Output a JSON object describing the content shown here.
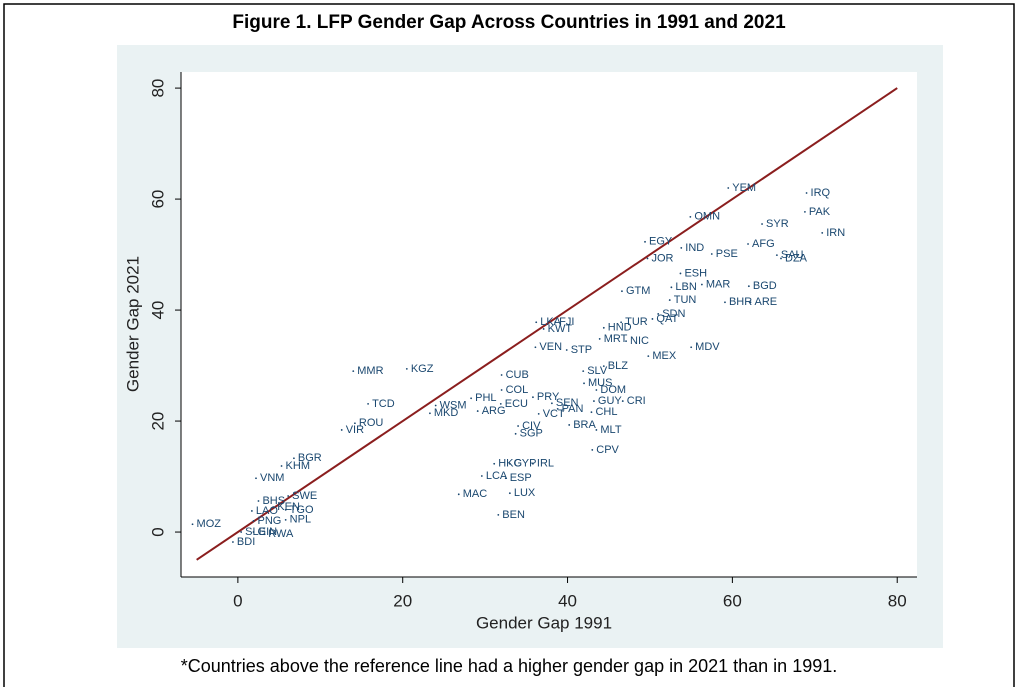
{
  "chart_data": {
    "type": "scatter",
    "title": "Figure 1. LFP Gender Gap Across Countries in 1991 and 2021",
    "xlabel": "Gender Gap 1991",
    "ylabel": "Gender Gap 2021",
    "footnote": "*Countries above the reference line had a higher gender gap in 2021 than in 1991.",
    "labels": [
      "MOZ",
      "BDI",
      "SLE",
      "GIN",
      "RWA",
      "PNG",
      "LAO",
      "KEN",
      "TGO",
      "NPL",
      "BHS",
      "SWE",
      "VNM",
      "KHM",
      "BGR",
      "YEM",
      "IRQ",
      "PAK",
      "OMN",
      "SYR",
      "IRN",
      "AFG",
      "EGY",
      "IND",
      "PSE",
      "SAU",
      "DZA",
      "JOR",
      "ESH",
      "LBN",
      "MAR",
      "BGD",
      "GTM",
      "TUN",
      "BHR",
      "ARE",
      "SDN",
      "QAT",
      "TUR",
      "LKA",
      "FJI",
      "KWT",
      "HND",
      "MRT",
      "NIC",
      "MDV",
      "VEN",
      "STP",
      "MEX",
      "BLZ",
      "SLV",
      "MMR",
      "KGZ",
      "CUB",
      "MUS",
      "COL",
      "PRY",
      "DOM",
      "GUY",
      "CRI",
      "PHL",
      "TCD",
      "ECU",
      "SEN",
      "PAN",
      "CHL",
      "WSM",
      "VCT",
      "MKD",
      "ARG",
      "ROU",
      "BRA",
      "MLT",
      "CIV",
      "VIR",
      "SGP",
      "CPV",
      "HKG",
      "CYP",
      "IRL",
      "ESP",
      "LCA",
      "LUX",
      "MAC",
      "BEN"
    ],
    "x": [
      -5.5,
      -0.6,
      0.4,
      1.9,
      3.2,
      1.9,
      1.7,
      4.3,
      5.8,
      5.8,
      2.5,
      6.1,
      2.2,
      5.3,
      6.8,
      59.5,
      69.0,
      68.8,
      54.9,
      63.6,
      70.9,
      61.9,
      49.4,
      53.8,
      57.5,
      65.4,
      65.9,
      49.7,
      53.7,
      52.6,
      56.3,
      62.0,
      46.6,
      52.4,
      59.1,
      62.2,
      51.0,
      50.3,
      46.5,
      36.2,
      38.5,
      37.1,
      44.4,
      43.9,
      47.1,
      55.0,
      36.1,
      39.9,
      49.8,
      44.4,
      41.9,
      14.0,
      20.5,
      32.0,
      42.0,
      32.0,
      35.8,
      43.5,
      43.2,
      46.7,
      28.3,
      15.8,
      31.9,
      38.1,
      38.8,
      42.9,
      24.0,
      36.5,
      23.3,
      29.1,
      14.2,
      40.2,
      43.5,
      34.0,
      12.6,
      33.7,
      43.0,
      31.1,
      33.0,
      35.8,
      32.5,
      29.6,
      33.0,
      26.8,
      31.6
    ],
    "values": [
      1.4,
      -1.8,
      0,
      0,
      -0.4,
      2,
      3.8,
      4.5,
      4.0,
      2.2,
      5.6,
      6.5,
      9.7,
      11.9,
      13.3,
      62.0,
      61.1,
      57.7,
      56.8,
      55.5,
      53.9,
      51.9,
      52.3,
      51.2,
      50.1,
      49.9,
      49.3,
      49.3,
      46.6,
      44.1,
      44.6,
      44.3,
      43.4,
      41.8,
      41.4,
      41.4,
      39.3,
      38.4,
      37.8,
      37.8,
      37.8,
      36.6,
      36.8,
      34.8,
      34.4,
      33.3,
      33.3,
      32.8,
      31.7,
      29.9,
      29.0,
      29.0,
      29.4,
      28.3,
      26.8,
      25.6,
      24.3,
      25.6,
      23.6,
      23.6,
      24.1,
      23.1,
      23.1,
      23.2,
      22.2,
      21.6,
      22.8,
      21.3,
      21.4,
      21.8,
      19.6,
      19.3,
      18.4,
      19.1,
      18.4,
      17.7,
      14.8,
      12.3,
      12.3,
      12.3,
      9.7,
      10.1,
      7.0,
      6.8,
      3.1
    ],
    "color": "#1a476f",
    "reference_line": {
      "x": [
        -5,
        80
      ],
      "y": [
        -5,
        80
      ],
      "color": "#8b1e1e"
    },
    "xlim": [
      -6.9,
      82.4
    ],
    "ylim": [
      -8.1,
      82.9
    ],
    "xticks": [
      0,
      20,
      40,
      60,
      80
    ],
    "yticks": [
      0,
      20,
      40,
      60,
      80
    ]
  }
}
